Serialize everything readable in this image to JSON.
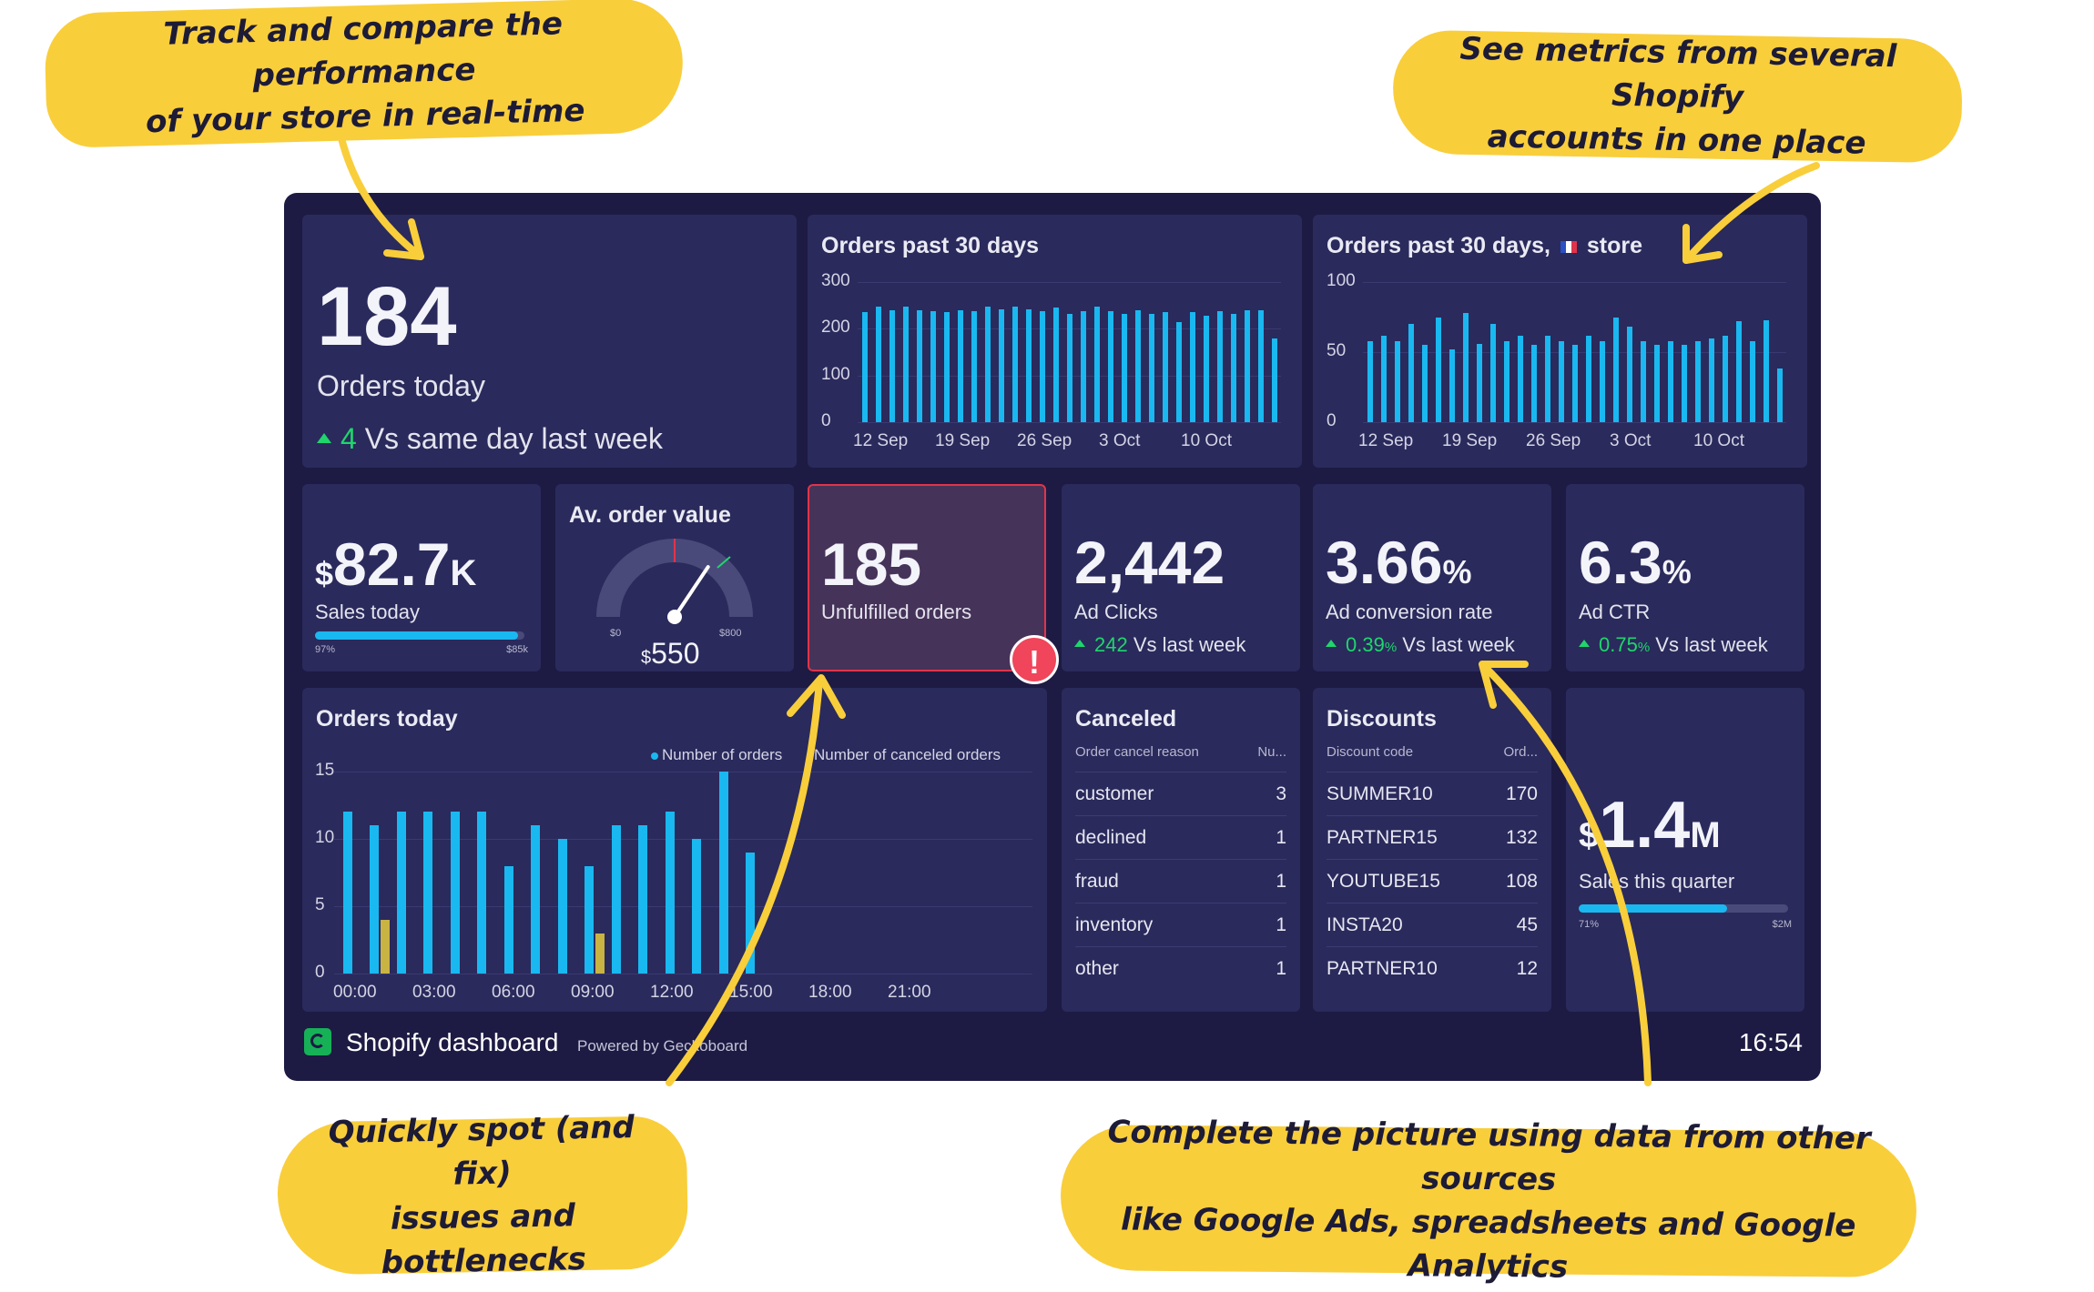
{
  "callouts": {
    "top_left": "Track and compare the performance\nof your store in real-time",
    "top_right": "See metrics from several Shopify\naccounts in one place",
    "bottom_left": "Quickly spot (and fix)\nissues and bottlenecks",
    "bottom_right": "Complete the picture using data from other sources\nlike Google Ads, spreadsheets and Google Analytics"
  },
  "kpi_orders_today": {
    "value": "184",
    "label": "Orders today",
    "delta": "4",
    "delta_text": "Vs same day last week"
  },
  "orders_30": {
    "title": "Orders past 30 days",
    "y_ticks": [
      "300",
      "200",
      "100",
      "0"
    ],
    "x_ticks": [
      "12 Sep",
      "19 Sep",
      "26 Sep",
      "3 Oct",
      "10 Oct"
    ]
  },
  "orders_30_store": {
    "title": "Orders past 30 days,",
    "title_suffix": "store",
    "y_ticks": [
      "100",
      "50",
      "0"
    ],
    "x_ticks": [
      "12 Sep",
      "19 Sep",
      "26 Sep",
      "3 Oct",
      "10 Oct"
    ]
  },
  "sales_today": {
    "currency": "$",
    "value": "82.7",
    "unit": "K",
    "label": "Sales today",
    "min_label": "97%",
    "max_label": "$85k",
    "progress": 0.97
  },
  "avg_order": {
    "title": "Av. order value",
    "currency": "$",
    "value": "550",
    "min_label": "$0",
    "max_label": "$800",
    "gauge_value": 550,
    "gauge_max": 800
  },
  "unfulfilled": {
    "value": "185",
    "label": "Unfulfilled orders",
    "alert_symbol": "!"
  },
  "ad_clicks": {
    "value": "2,442",
    "label": "Ad Clicks",
    "delta": "242",
    "delta_text": "Vs last week"
  },
  "ad_conversion": {
    "value": "3.66",
    "unit": "%",
    "label": "Ad conversion rate",
    "delta": "0.39",
    "delta_unit": "%",
    "delta_text": "Vs last week"
  },
  "ad_ctr": {
    "value": "6.3",
    "unit": "%",
    "label": "Ad CTR",
    "delta": "0.75",
    "delta_unit": "%",
    "delta_text": "Vs last week"
  },
  "orders_today_chart": {
    "title": "Orders today",
    "legend_orders": "Number of orders",
    "legend_canceled": "Number of canceled orders",
    "y_ticks": [
      "15",
      "10",
      "5",
      "0"
    ],
    "x_ticks": [
      "00:00",
      "03:00",
      "06:00",
      "09:00",
      "12:00",
      "15:00",
      "18:00",
      "21:00"
    ]
  },
  "canceled": {
    "title": "Canceled",
    "col1": "Order cancel reason",
    "col2": "Nu...",
    "rows": [
      {
        "reason": "customer",
        "count": "3"
      },
      {
        "reason": "declined",
        "count": "1"
      },
      {
        "reason": "fraud",
        "count": "1"
      },
      {
        "reason": "inventory",
        "count": "1"
      },
      {
        "reason": "other",
        "count": "1"
      }
    ]
  },
  "discounts": {
    "title": "Discounts",
    "col1": "Discount code",
    "col2": "Ord...",
    "rows": [
      {
        "code": "SUMMER10",
        "count": "170"
      },
      {
        "code": "PARTNER15",
        "count": "132"
      },
      {
        "code": "YOUTUBE15",
        "count": "108"
      },
      {
        "code": "INSTA20",
        "count": "45"
      },
      {
        "code": "PARTNER10",
        "count": "12"
      }
    ]
  },
  "sales_quarter": {
    "currency": "$",
    "value": "1.4",
    "unit": "M",
    "label": "Sales this quarter",
    "min_label": "71%",
    "max_label": "$2M",
    "progress": 0.71
  },
  "footer": {
    "title": "Shopify dashboard",
    "powered": "Powered by Geckoboard",
    "time": "16:54"
  },
  "chart_data": [
    {
      "type": "bar",
      "title": "Orders past 30 days",
      "x": [
        "12 Sep",
        "13 Sep",
        "14 Sep",
        "15 Sep",
        "16 Sep",
        "17 Sep",
        "18 Sep",
        "19 Sep",
        "20 Sep",
        "21 Sep",
        "22 Sep",
        "23 Sep",
        "24 Sep",
        "25 Sep",
        "26 Sep",
        "27 Sep",
        "28 Sep",
        "29 Sep",
        "30 Sep",
        "1 Oct",
        "2 Oct",
        "3 Oct",
        "4 Oct",
        "5 Oct",
        "6 Oct",
        "7 Oct",
        "8 Oct",
        "9 Oct",
        "10 Oct",
        "11 Oct",
        "12 Oct"
      ],
      "values": [
        235,
        248,
        240,
        248,
        240,
        238,
        235,
        240,
        238,
        248,
        242,
        248,
        242,
        238,
        245,
        232,
        238,
        248,
        238,
        232,
        240,
        232,
        235,
        215,
        235,
        228,
        238,
        232,
        240,
        240,
        180
      ],
      "ylim": [
        0,
        300
      ]
    },
    {
      "type": "bar",
      "title": "Orders past 30 days, store",
      "x": [
        "12 Sep",
        "13 Sep",
        "14 Sep",
        "15 Sep",
        "16 Sep",
        "17 Sep",
        "18 Sep",
        "19 Sep",
        "20 Sep",
        "21 Sep",
        "22 Sep",
        "23 Sep",
        "24 Sep",
        "25 Sep",
        "26 Sep",
        "27 Sep",
        "28 Sep",
        "29 Sep",
        "30 Sep",
        "1 Oct",
        "2 Oct",
        "3 Oct",
        "4 Oct",
        "5 Oct",
        "6 Oct",
        "7 Oct",
        "8 Oct",
        "9 Oct",
        "10 Oct",
        "11 Oct",
        "12 Oct"
      ],
      "values": [
        58,
        62,
        58,
        70,
        55,
        75,
        52,
        78,
        56,
        70,
        58,
        62,
        55,
        62,
        58,
        55,
        62,
        58,
        75,
        68,
        58,
        55,
        58,
        55,
        58,
        60,
        62,
        72,
        58,
        73,
        38
      ],
      "ylim": [
        0,
        100
      ]
    },
    {
      "type": "bar",
      "title": "Orders today",
      "categories": [
        "00:00",
        "01:00",
        "02:00",
        "03:00",
        "04:00",
        "05:00",
        "06:00",
        "07:00",
        "08:00",
        "09:00",
        "10:00",
        "11:00",
        "12:00",
        "13:00",
        "14:00",
        "15:00"
      ],
      "series": [
        {
          "name": "Number of orders",
          "values": [
            12,
            11,
            12,
            12,
            12,
            12,
            8,
            11,
            10,
            8,
            11,
            11,
            12,
            10,
            15,
            9
          ]
        },
        {
          "name": "Number of canceled orders",
          "values": [
            0,
            4,
            0,
            0,
            0,
            0,
            0,
            0,
            0,
            3,
            0,
            0,
            0,
            0,
            0,
            0
          ]
        }
      ],
      "ylim": [
        0,
        15
      ]
    }
  ]
}
